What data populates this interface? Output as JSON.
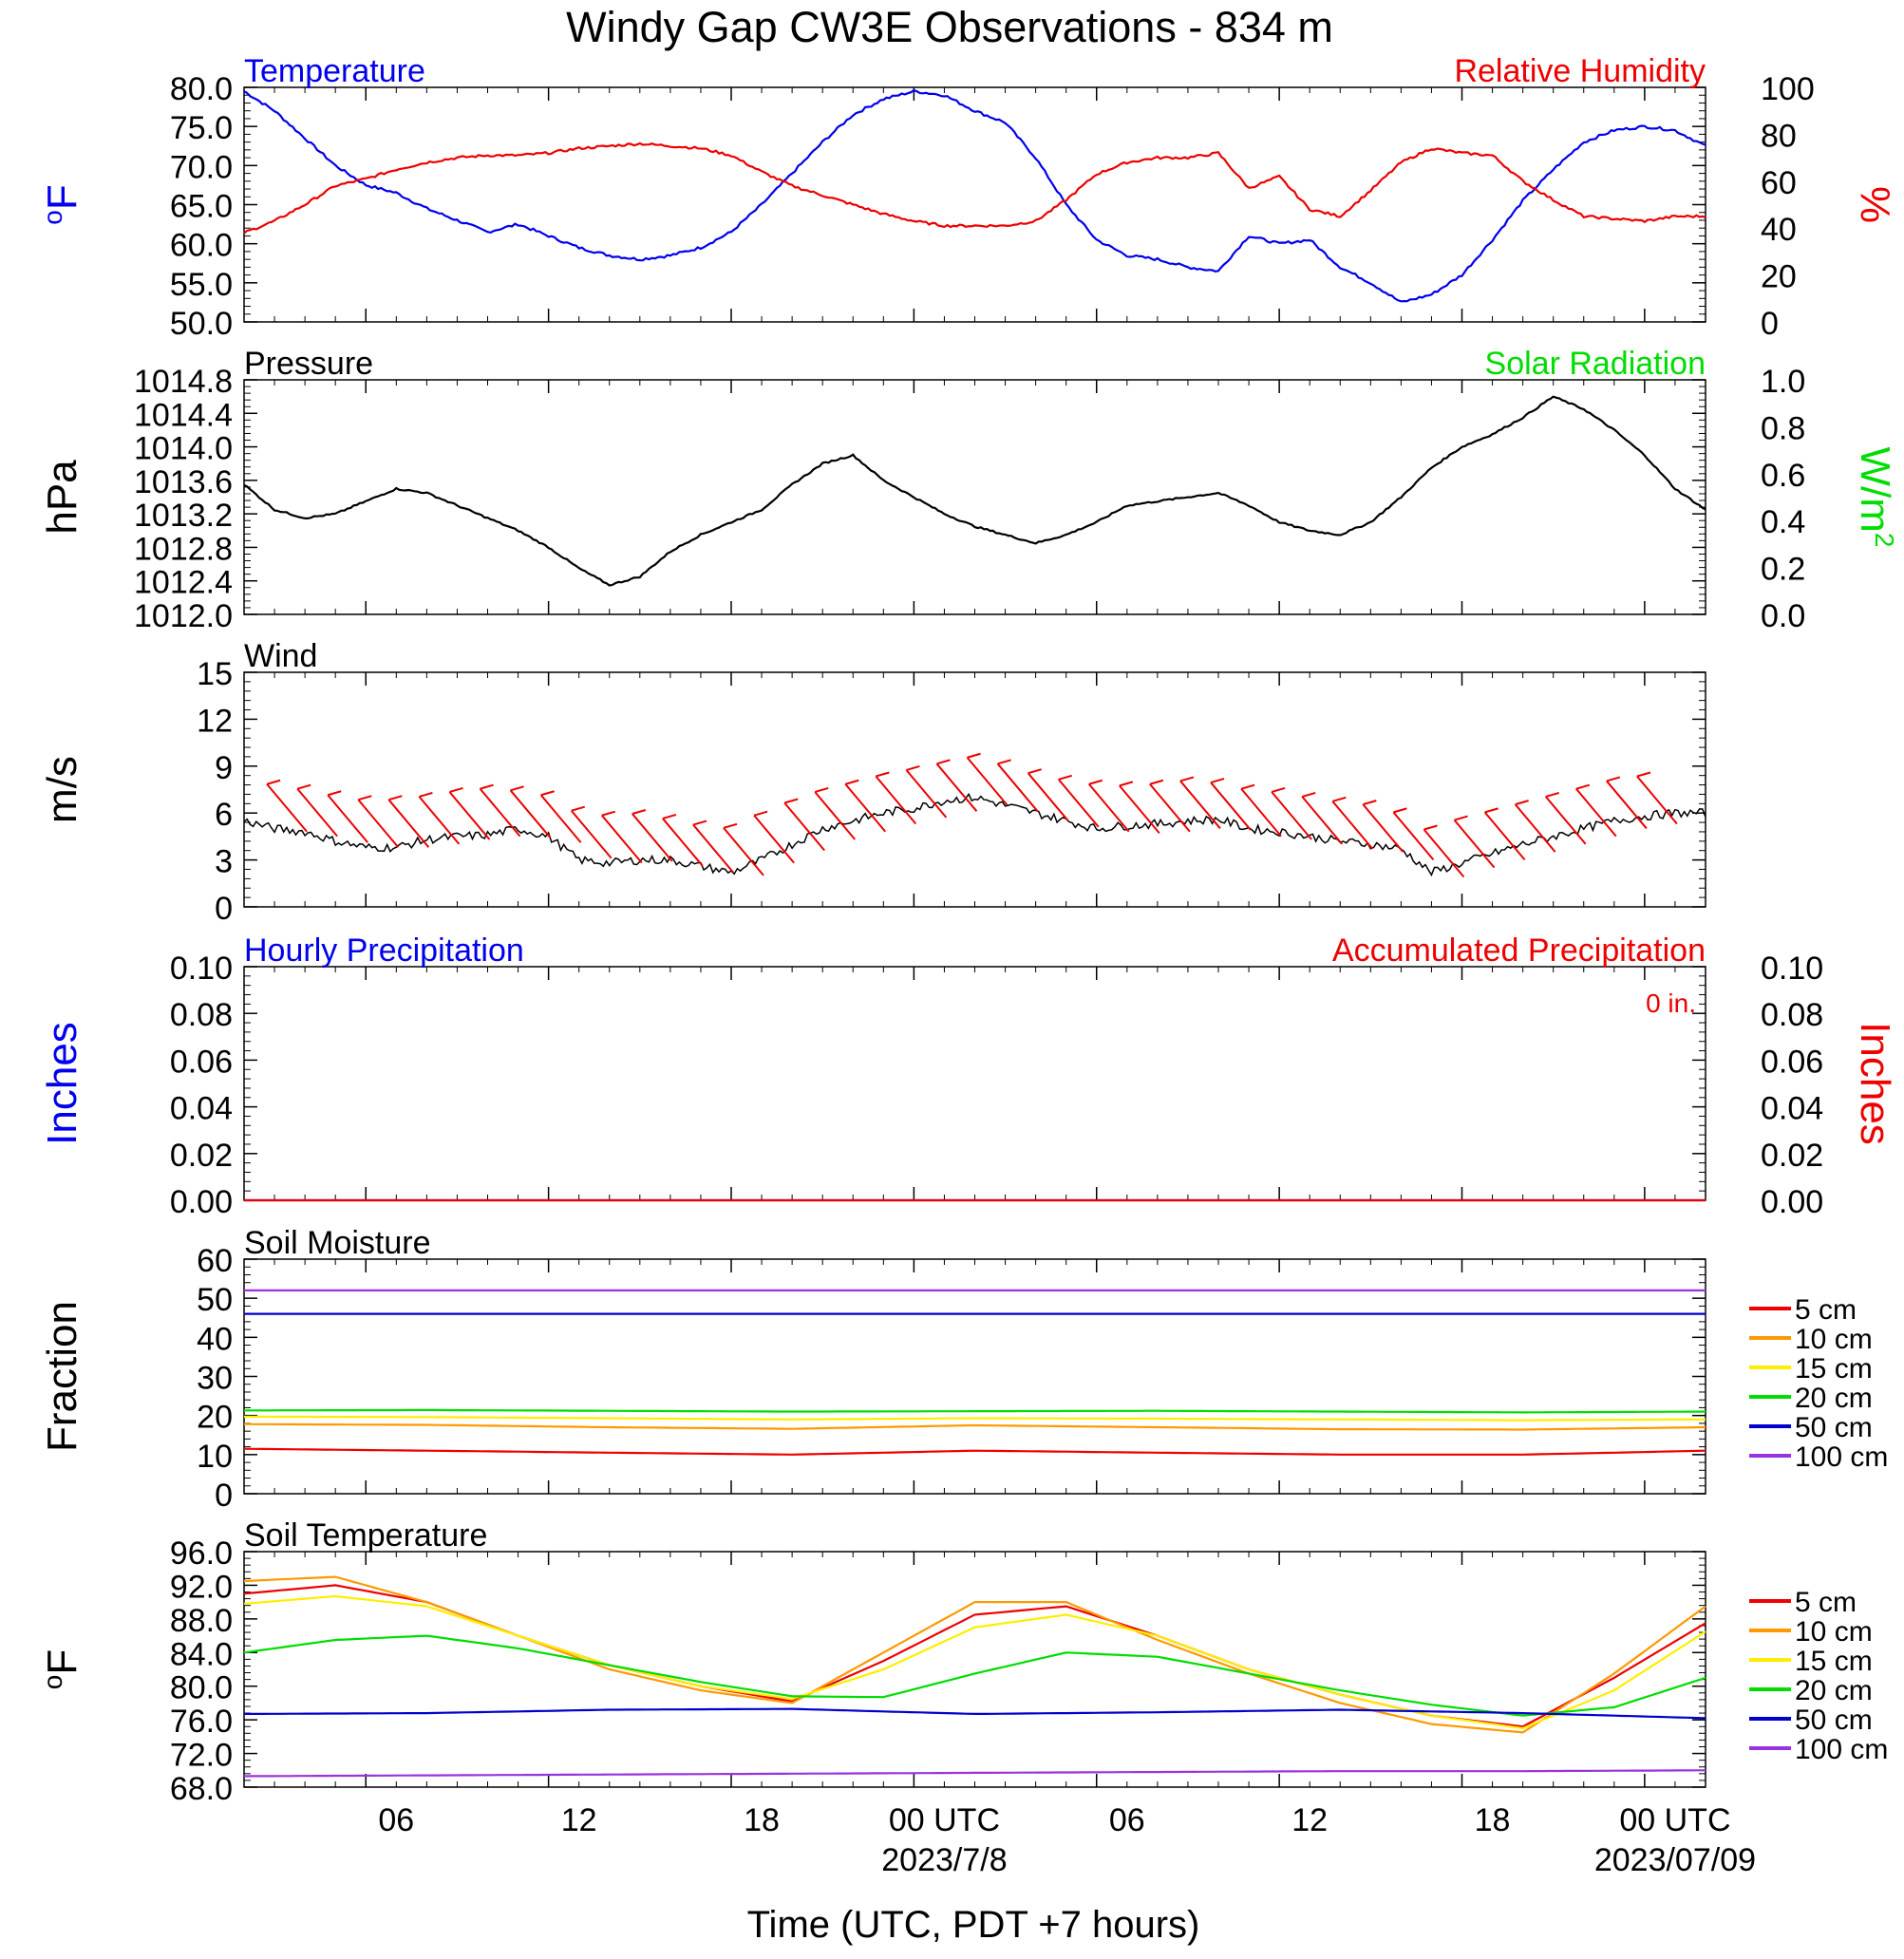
{
  "title": "Windy Gap CW3E Observations - 834 m",
  "x_axis": {
    "label": "Time (UTC, PDT +7 hours)",
    "ticks": [
      "06",
      "12",
      "18",
      "00 UTC",
      "06",
      "12",
      "18",
      "00 UTC"
    ],
    "date_labels": [
      "2023/7/8",
      "2023/07/09"
    ]
  },
  "colors": {
    "blue": "#0000ee",
    "red": "#ee0000",
    "green": "#00dd00",
    "black": "#000000",
    "orange": "#ff9900",
    "yellow": "#ffee00",
    "darkblue": "#0000cc",
    "purple": "#9933dd"
  },
  "chart_data": [
    {
      "type": "line",
      "title_left": "Temperature",
      "title_right": "Relative Humidity",
      "ylabel_left_sup": "o",
      "ylabel_left": "F",
      "ylabel_right": "%",
      "ylim_left": [
        50,
        80
      ],
      "yticks_left": [
        "80.0",
        "75.0",
        "70.0",
        "65.0",
        "60.0",
        "55.0",
        "50.0"
      ],
      "ylim_right": [
        0,
        100
      ],
      "yticks_right": [
        "100",
        "80",
        "60",
        "40",
        "20",
        "0"
      ],
      "xlim_hours": [
        0,
        48
      ],
      "series": [
        {
          "name": "Temperature",
          "axis": "left",
          "color": "#0000ee",
          "x": [
            0,
            1,
            2,
            3,
            4,
            5,
            6,
            7,
            8,
            9,
            10,
            11,
            12,
            13,
            14,
            15,
            16,
            17,
            18,
            19,
            20,
            21,
            22,
            23,
            24,
            25,
            26,
            27,
            28,
            29,
            30,
            31,
            32,
            33,
            34,
            35,
            36,
            37,
            38,
            39,
            40,
            41,
            42,
            43,
            44,
            45,
            46,
            47,
            48
          ],
          "y": [
            79.5,
            77,
            73.5,
            70,
            67.5,
            66.5,
            64.5,
            63,
            61.5,
            62.5,
            61,
            59.5,
            58.5,
            58,
            58.5,
            59.5,
            61.5,
            65,
            69,
            73,
            76.5,
            78.5,
            79.5,
            79,
            77,
            75.5,
            71,
            65,
            60.5,
            58.5,
            58,
            57,
            56.5,
            61,
            60,
            60.5,
            57,
            55,
            52.5,
            53.5,
            56,
            60.5,
            65.5,
            69.5,
            73,
            74.5,
            75,
            74.5,
            72.5
          ]
        },
        {
          "name": "Relative Humidity",
          "axis": "right",
          "color": "#ee0000",
          "x": [
            0,
            1,
            2,
            3,
            4,
            5,
            6,
            7,
            8,
            9,
            10,
            11,
            12,
            13,
            14,
            15,
            16,
            17,
            18,
            19,
            20,
            21,
            22,
            23,
            24,
            25,
            26,
            27,
            28,
            29,
            30,
            31,
            32,
            33,
            34,
            35,
            36,
            37,
            38,
            39,
            40,
            41,
            42,
            43,
            44,
            45,
            46,
            47,
            48
          ],
          "y": [
            38,
            43,
            50,
            58,
            61,
            65,
            68,
            70,
            71,
            71,
            72,
            74,
            75,
            76,
            75,
            74,
            71,
            64,
            58,
            54,
            50,
            46,
            43,
            41,
            41,
            41,
            43,
            52,
            63,
            68,
            70,
            70,
            72,
            57,
            62,
            48,
            45,
            56,
            68,
            74,
            72,
            71,
            60,
            52,
            45,
            44,
            43,
            45,
            45
          ]
        }
      ]
    },
    {
      "type": "line",
      "title_left": "Pressure",
      "title_right": "Solar Radiation",
      "ylabel_left": "hPa",
      "ylabel_right": "W/m",
      "ylabel_right_sup": "2",
      "ylim_left": [
        1012.0,
        1014.8
      ],
      "yticks_left": [
        "1014.8",
        "1014.4",
        "1014.0",
        "1013.6",
        "1013.2",
        "1012.8",
        "1012.4",
        "1012.0"
      ],
      "ylim_right": [
        0,
        1
      ],
      "yticks_right": [
        "1.0",
        "0.8",
        "0.6",
        "0.4",
        "0.2",
        "0.0"
      ],
      "series": [
        {
          "name": "Pressure",
          "axis": "left",
          "color": "#000000",
          "x": [
            0,
            1,
            2,
            3,
            4,
            5,
            6,
            7,
            8,
            9,
            10,
            11,
            12,
            13,
            14,
            15,
            16,
            17,
            18,
            19,
            20,
            21,
            22,
            23,
            24,
            25,
            26,
            27,
            28,
            29,
            30,
            31,
            32,
            33,
            34,
            35,
            36,
            37,
            38,
            39,
            40,
            41,
            42,
            43,
            44,
            45,
            46,
            47,
            48
          ],
          "y": [
            1013.55,
            1013.25,
            1013.15,
            1013.2,
            1013.35,
            1013.5,
            1013.45,
            1013.3,
            1013.15,
            1013.0,
            1012.8,
            1012.55,
            1012.35,
            1012.45,
            1012.75,
            1012.95,
            1013.1,
            1013.25,
            1013.55,
            1013.8,
            1013.9,
            1013.6,
            1013.4,
            1013.2,
            1013.05,
            1012.95,
            1012.85,
            1012.95,
            1013.1,
            1013.3,
            1013.35,
            1013.4,
            1013.45,
            1013.3,
            1013.1,
            1013.0,
            1012.95,
            1013.1,
            1013.4,
            1013.75,
            1014.0,
            1014.15,
            1014.35,
            1014.6,
            1014.45,
            1014.2,
            1013.9,
            1013.5,
            1013.25
          ]
        }
      ]
    },
    {
      "type": "line",
      "title_left": "Wind",
      "ylabel_left": "m/s",
      "ylim_left": [
        0,
        15
      ],
      "yticks_left": [
        "15",
        "12",
        "9",
        "6",
        "3",
        "0"
      ],
      "series": [
        {
          "name": "Wind",
          "axis": "left",
          "color": "#000000",
          "x": [
            0,
            1,
            2,
            3,
            4,
            5,
            6,
            7,
            8,
            9,
            10,
            11,
            12,
            13,
            14,
            15,
            16,
            17,
            18,
            19,
            20,
            21,
            22,
            23,
            24,
            25,
            26,
            27,
            28,
            29,
            30,
            31,
            32,
            33,
            34,
            35,
            36,
            37,
            38,
            39,
            40,
            41,
            42,
            43,
            44,
            45,
            46,
            47,
            48
          ],
          "y": [
            5.5,
            5.0,
            4.8,
            4.2,
            3.8,
            3.8,
            4.3,
            4.5,
            4.6,
            5.0,
            4.5,
            3.0,
            2.8,
            3.0,
            3.0,
            2.6,
            2.2,
            3.0,
            4.0,
            5.0,
            5.5,
            6.0,
            6.3,
            6.8,
            7.0,
            6.5,
            6.0,
            5.5,
            5.0,
            5.2,
            5.3,
            5.5,
            5.6,
            5.0,
            4.8,
            4.5,
            4.2,
            4.0,
            3.7,
            2.2,
            2.8,
            3.4,
            4.0,
            4.5,
            5.0,
            5.5,
            5.8,
            6.0,
            6.0
          ]
        },
        {
          "name": "Wind barbs",
          "axis": "left",
          "color": "#ee0000",
          "x": [
            1.5,
            2.5,
            3.5,
            4.5,
            5.5,
            6.5,
            7.5,
            8.5,
            9.5,
            10.5,
            11.5,
            12.5,
            13.5,
            14.5,
            15.5,
            16.5,
            17.5,
            18.5,
            19.5,
            20.5,
            21.5,
            22.5,
            23.5,
            24.5,
            25.5,
            26.5,
            27.5,
            28.5,
            29.5,
            30.5,
            31.5,
            32.5,
            33.5,
            34.5,
            35.5,
            36.5,
            37.5,
            38.5,
            39.5,
            40.5,
            41.5,
            42.5,
            43.5,
            44.5,
            45.5,
            46.5
          ],
          "y": [
            5.3,
            5.0,
            4.6,
            4.3,
            4.3,
            4.5,
            4.8,
            5.0,
            4.9,
            4.6,
            3.6,
            3.3,
            3.4,
            3.1,
            2.7,
            2.5,
            3.3,
            4.1,
            4.8,
            5.3,
            5.8,
            6.2,
            6.6,
            7.0,
            6.6,
            6.0,
            5.6,
            5.3,
            5.2,
            5.3,
            5.5,
            5.4,
            5.0,
            4.8,
            4.5,
            4.2,
            4.0,
            3.5,
            2.4,
            3.0,
            3.5,
            4.0,
            4.5,
            5.0,
            5.5,
            5.8
          ]
        }
      ]
    },
    {
      "type": "line",
      "title_left": "Hourly Precipitation",
      "title_right": "Accumulated Precipitation",
      "annotation": "0 in.",
      "ylabel_left": "Inches",
      "ylabel_right": "Inches",
      "ylim_left": [
        0,
        0.1
      ],
      "yticks_left": [
        "0.10",
        "0.08",
        "0.06",
        "0.04",
        "0.02",
        "0.00"
      ],
      "ylim_right": [
        0,
        0.1
      ],
      "yticks_right": [
        "0.10",
        "0.08",
        "0.06",
        "0.04",
        "0.02",
        "0.00"
      ],
      "series": [
        {
          "name": "Hourly Precipitation",
          "axis": "left",
          "color": "#0000ee",
          "x": [
            0,
            48
          ],
          "y": [
            0,
            0
          ]
        },
        {
          "name": "Accumulated Precipitation",
          "axis": "right",
          "color": "#ee0000",
          "x": [
            0,
            48
          ],
          "y": [
            0,
            0
          ]
        }
      ]
    },
    {
      "type": "line",
      "title_left": "Soil Moisture",
      "ylabel_left": "Fraction",
      "ylim_left": [
        0,
        60
      ],
      "yticks_left": [
        "60",
        "50",
        "40",
        "30",
        "20",
        "10",
        "0"
      ],
      "legend": [
        "5 cm",
        "10 cm",
        "15 cm",
        "20 cm",
        "50 cm",
        "100 cm"
      ],
      "series": [
        {
          "name": "5 cm",
          "color": "#ee0000",
          "x": [
            0,
            6,
            12,
            18,
            24,
            30,
            36,
            42,
            48
          ],
          "y": [
            11.5,
            11,
            10.5,
            10,
            11,
            10.5,
            10,
            10,
            11
          ]
        },
        {
          "name": "10 cm",
          "color": "#ff9900",
          "x": [
            0,
            6,
            12,
            18,
            24,
            30,
            36,
            42,
            48
          ],
          "y": [
            17.8,
            17.6,
            17,
            16.6,
            17.5,
            17,
            16.5,
            16.4,
            17
          ]
        },
        {
          "name": "15 cm",
          "color": "#ffee00",
          "x": [
            0,
            6,
            12,
            18,
            24,
            30,
            36,
            42,
            48
          ],
          "y": [
            19.7,
            19.6,
            19.3,
            19,
            19.3,
            19.2,
            19,
            18.8,
            19
          ]
        },
        {
          "name": "20 cm",
          "color": "#00dd00",
          "x": [
            0,
            6,
            12,
            18,
            24,
            30,
            36,
            42,
            48
          ],
          "y": [
            21.3,
            21.4,
            21.2,
            21,
            21.1,
            21.2,
            21,
            20.8,
            21
          ]
        },
        {
          "name": "50 cm",
          "color": "#0000cc",
          "x": [
            0,
            6,
            12,
            18,
            24,
            30,
            36,
            42,
            48
          ],
          "y": [
            46,
            46,
            46,
            46,
            46,
            46,
            46,
            46,
            46
          ]
        },
        {
          "name": "100 cm",
          "color": "#9933dd",
          "x": [
            0,
            6,
            12,
            18,
            24,
            30,
            36,
            42,
            48
          ],
          "y": [
            52,
            52,
            52,
            52,
            52,
            52,
            52,
            52,
            52
          ]
        }
      ]
    },
    {
      "type": "line",
      "title_left": "Soil Temperature",
      "ylabel_left_sup": "o",
      "ylabel_left": "F",
      "ylim_left": [
        68,
        96
      ],
      "yticks_left": [
        "96.0",
        "92.0",
        "88.0",
        "84.0",
        "80.0",
        "76.0",
        "72.0",
        "68.0"
      ],
      "legend": [
        "5 cm",
        "10 cm",
        "15 cm",
        "20 cm",
        "50 cm",
        "100 cm"
      ],
      "series": [
        {
          "name": "5 cm",
          "color": "#ee0000",
          "x": [
            0,
            3,
            6,
            9,
            12,
            15,
            18,
            21,
            24,
            27,
            30,
            33,
            36,
            39,
            42,
            45,
            48
          ],
          "y": [
            91,
            92,
            90,
            86,
            82.5,
            80,
            78.2,
            83,
            88.5,
            89.5,
            86,
            82,
            79,
            76.5,
            75.2,
            81,
            87.5
          ]
        },
        {
          "name": "10 cm",
          "color": "#ff9900",
          "x": [
            0,
            3,
            6,
            9,
            12,
            15,
            18,
            21,
            24,
            27,
            30,
            33,
            36,
            39,
            42,
            45,
            48
          ],
          "y": [
            92.5,
            93,
            90,
            86,
            82,
            79.5,
            78,
            84,
            90,
            90,
            85.5,
            81.5,
            78,
            75.5,
            74.5,
            81.5,
            89.5
          ]
        },
        {
          "name": "15 cm",
          "color": "#ffee00",
          "x": [
            0,
            3,
            6,
            9,
            12,
            15,
            18,
            21,
            24,
            27,
            30,
            33,
            36,
            39,
            42,
            45,
            48
          ],
          "y": [
            89.8,
            90.7,
            89.5,
            86,
            82.5,
            80,
            78.5,
            82,
            87,
            88.5,
            86,
            82,
            79,
            76.5,
            75,
            79.5,
            86.5
          ]
        },
        {
          "name": "20 cm",
          "color": "#00dd00",
          "x": [
            0,
            3,
            6,
            9,
            12,
            15,
            18,
            21,
            24,
            27,
            30,
            33,
            36,
            39,
            42,
            45,
            48
          ],
          "y": [
            84,
            85.5,
            86,
            84.5,
            82.5,
            80.5,
            78.8,
            78.7,
            81.5,
            84,
            83.5,
            81.5,
            79.5,
            77.8,
            76.5,
            77.5,
            81
          ]
        },
        {
          "name": "50 cm",
          "color": "#0000cc",
          "x": [
            0,
            6,
            12,
            18,
            24,
            30,
            36,
            42,
            48
          ],
          "y": [
            76.7,
            76.8,
            77.2,
            77.3,
            76.7,
            76.9,
            77.2,
            76.8,
            76.2
          ]
        },
        {
          "name": "100 cm",
          "color": "#9933dd",
          "x": [
            0,
            6,
            12,
            18,
            24,
            30,
            36,
            42,
            48
          ],
          "y": [
            69.3,
            69.4,
            69.5,
            69.6,
            69.7,
            69.8,
            69.9,
            69.9,
            70.0
          ]
        }
      ]
    }
  ]
}
